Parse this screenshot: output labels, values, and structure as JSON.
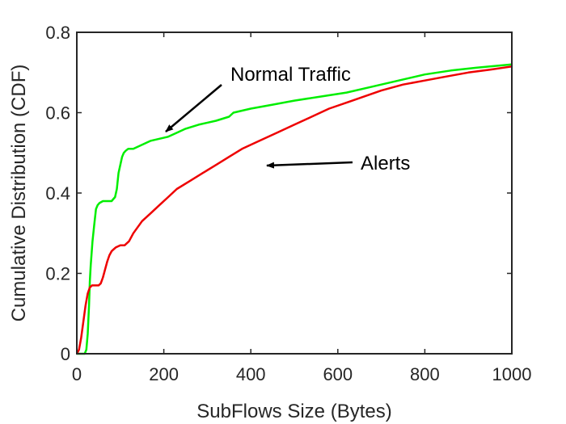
{
  "chart_data": {
    "type": "line",
    "title": "",
    "xlabel": "SubFlows Size (Bytes)",
    "ylabel": "Cumulative Distribution (CDF)",
    "xlim": [
      0,
      1000
    ],
    "ylim": [
      0,
      0.8
    ],
    "xticks": [
      0,
      200,
      400,
      600,
      800,
      1000
    ],
    "yticks": [
      0,
      0.2,
      0.4,
      0.6,
      0.8
    ],
    "xtick_labels": [
      "0",
      "200",
      "400",
      "600",
      "800",
      "1000"
    ],
    "ytick_labels": [
      "0",
      "0.2",
      "0.4",
      "0.6",
      "0.8"
    ],
    "grid": false,
    "legend": "none",
    "series": [
      {
        "color": "#00ee00",
        "x": [
          0,
          18,
          22,
          25,
          28,
          30,
          32,
          36,
          40,
          44,
          48,
          52,
          60,
          70,
          80,
          88,
          92,
          96,
          100,
          104,
          108,
          112,
          118,
          130,
          150,
          170,
          190,
          210,
          230,
          250,
          280,
          320,
          350,
          360,
          400,
          450,
          500,
          560,
          620,
          680,
          740,
          800,
          860,
          920,
          1000
        ],
        "y": [
          0,
          0,
          0.01,
          0.05,
          0.12,
          0.18,
          0.22,
          0.28,
          0.32,
          0.36,
          0.37,
          0.375,
          0.38,
          0.38,
          0.38,
          0.39,
          0.41,
          0.45,
          0.47,
          0.49,
          0.5,
          0.505,
          0.51,
          0.51,
          0.52,
          0.53,
          0.535,
          0.54,
          0.55,
          0.56,
          0.57,
          0.58,
          0.59,
          0.6,
          0.61,
          0.62,
          0.63,
          0.64,
          0.65,
          0.665,
          0.68,
          0.695,
          0.705,
          0.712,
          0.72
        ]
      },
      {
        "color": "#ee0000",
        "x": [
          0,
          5,
          10,
          15,
          20,
          25,
          30,
          35,
          40,
          45,
          50,
          55,
          60,
          65,
          70,
          75,
          80,
          85,
          90,
          100,
          110,
          120,
          130,
          150,
          170,
          190,
          210,
          230,
          260,
          290,
          320,
          350,
          380,
          420,
          460,
          500,
          540,
          580,
          620,
          660,
          700,
          750,
          800,
          850,
          900,
          950,
          1000
        ],
        "y": [
          0,
          0.01,
          0.04,
          0.08,
          0.12,
          0.15,
          0.165,
          0.17,
          0.17,
          0.17,
          0.17,
          0.175,
          0.19,
          0.21,
          0.23,
          0.245,
          0.255,
          0.26,
          0.265,
          0.27,
          0.27,
          0.28,
          0.3,
          0.33,
          0.35,
          0.37,
          0.39,
          0.41,
          0.43,
          0.45,
          0.47,
          0.49,
          0.51,
          0.53,
          0.55,
          0.57,
          0.59,
          0.61,
          0.625,
          0.64,
          0.655,
          0.67,
          0.68,
          0.69,
          0.7,
          0.707,
          0.715
        ]
      }
    ],
    "annotations": [
      {
        "text": "Normal Traffic",
        "points_to": [
          200,
          0.545
        ]
      },
      {
        "text": "Alerts",
        "points_to": [
          420,
          0.465
        ]
      }
    ]
  }
}
